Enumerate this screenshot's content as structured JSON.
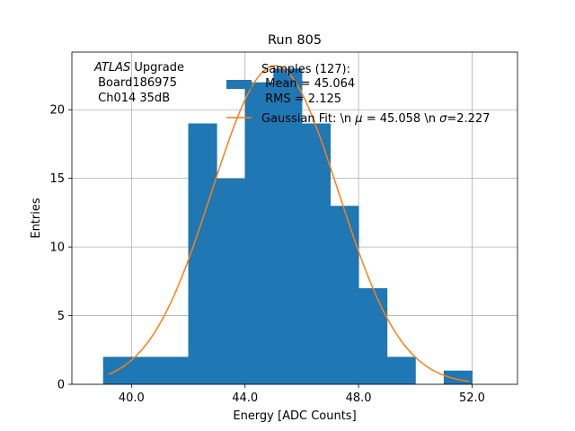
{
  "chart_data": {
    "type": "bar",
    "title": "Run 805",
    "xlabel": "Energy [ADC Counts]",
    "ylabel": "Entries",
    "xlim": [
      37.9,
      53.6
    ],
    "ylim": [
      0,
      24.2
    ],
    "xticks": [
      40.0,
      44.0,
      48.0,
      52.0
    ],
    "xtick_labels": [
      "40.0",
      "44.0",
      "48.0",
      "52.0"
    ],
    "yticks": [
      0,
      5,
      10,
      15,
      20
    ],
    "ytick_labels": [
      "0",
      "5",
      "10",
      "15",
      "20"
    ],
    "grid": true,
    "bin_edges": [
      39,
      40,
      41,
      42,
      43,
      44,
      45,
      46,
      47,
      48,
      49,
      50,
      51,
      52
    ],
    "counts": [
      2,
      2,
      2,
      19,
      15,
      22,
      23,
      19,
      13,
      7,
      2,
      0,
      1
    ],
    "series": [
      {
        "name": "Samples (127):\n Mean = 45.064\n RMS = 2.125",
        "type": "histogram",
        "color": "#1f77b4"
      },
      {
        "name": "Gaussian Fit: \\n $\\mu$ = 45.058 \\n $\\sigma$=2.227",
        "type": "line",
        "color": "#ff7f0e",
        "mu": 45.058,
        "sigma": 2.227,
        "amplitude": 23.2,
        "x_range": [
          39.2,
          51.9
        ]
      }
    ],
    "legend": {
      "placement": "top-right",
      "hist_lines": [
        "Samples (127):",
        " Mean = 45.064",
        " RMS = 2.125"
      ],
      "fit_label_prefix": "Gaussian Fit: \\n ",
      "fit_mu_symbol": "μ",
      "fit_mu_value": " = 45.058 \\n ",
      "fit_sigma_symbol": "σ",
      "fit_sigma_value": "=2.227"
    },
    "annotation": {
      "atlas": "ATLAS",
      "upgrade": " Upgrade",
      "board": " Board186975",
      "channel": " Ch014 35dB"
    }
  }
}
